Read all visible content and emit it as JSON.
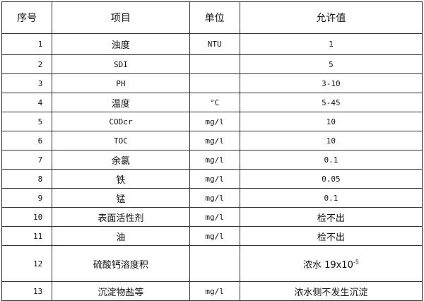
{
  "headers": [
    "序号",
    "项目",
    "单位",
    "允许值"
  ],
  "rows": [
    {
      "no": "1",
      "item": "浊度",
      "unit": "NTU",
      "value": "1"
    },
    {
      "no": "2",
      "item": "SDI",
      "unit": "",
      "value": "5"
    },
    {
      "no": "3",
      "item": "PH",
      "unit": "",
      "value": "3-10"
    },
    {
      "no": "4",
      "item": "温度",
      "unit": "°C",
      "value": "5-45"
    },
    {
      "no": "5",
      "item": "CODcr",
      "unit": "mg/l",
      "value": "10"
    },
    {
      "no": "6",
      "item": "TOC",
      "unit": "mg/l",
      "value": "10"
    },
    {
      "no": "7",
      "item": "余氯",
      "unit": "mg/l",
      "value": "0.1"
    },
    {
      "no": "8",
      "item": "铁",
      "unit": "mg/l",
      "value": "0.05"
    },
    {
      "no": "9",
      "item": "锰",
      "unit": "mg/l",
      "value": "0.1"
    },
    {
      "no": "10",
      "item": "表面活性剂",
      "unit": "mg/l",
      "value": "检不出"
    },
    {
      "no": "11",
      "item": "油",
      "unit": "mg/l",
      "value": "检不出"
    },
    {
      "no": "12",
      "item": "硫酸钙溶度积",
      "unit": "",
      "value": "浓水 19x10",
      "value_exp": "-5"
    },
    {
      "no": "13",
      "item": "沉淀物盐等",
      "unit": "mg/l",
      "value": "浓水侧不发生沉淀"
    }
  ]
}
